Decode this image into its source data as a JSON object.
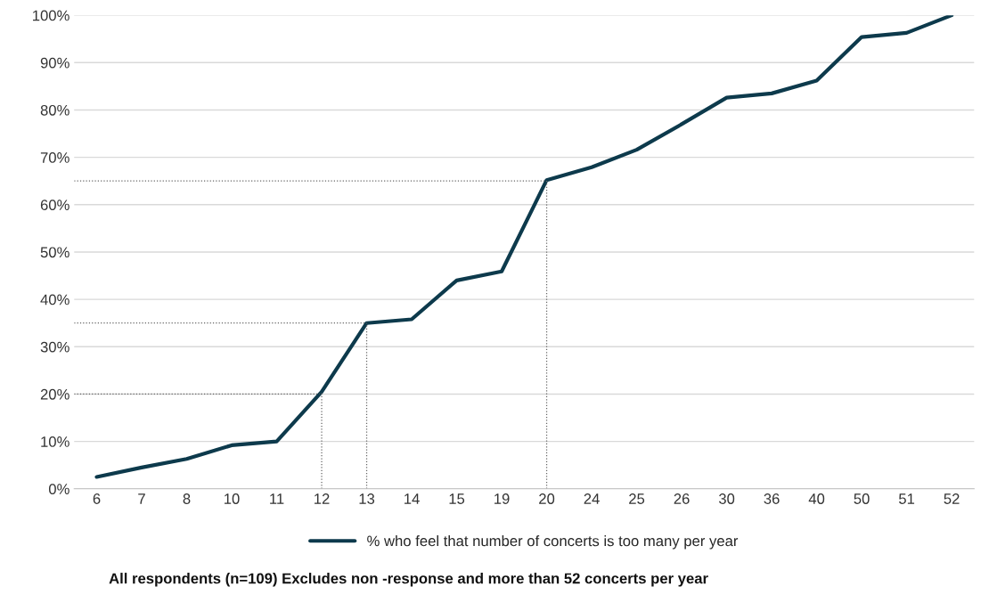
{
  "chart_data": {
    "type": "line",
    "categories": [
      "6",
      "7",
      "8",
      "10",
      "11",
      "12",
      "13",
      "14",
      "15",
      "19",
      "20",
      "24",
      "25",
      "26",
      "30",
      "36",
      "40",
      "50",
      "51",
      "52"
    ],
    "series": [
      {
        "name": "% who feel that number of concerts is too many per year",
        "color": "#0d3a4c",
        "values": [
          2.5,
          4.5,
          6.3,
          9.2,
          10,
          20.5,
          35,
          35.8,
          44,
          45.9,
          65.2,
          67.9,
          71.6,
          77,
          82.6,
          83.5,
          86.2,
          95.4,
          96.3,
          100
        ]
      }
    ],
    "ylim": [
      0,
      100
    ],
    "yticks": [
      {
        "value": 0,
        "label": "0%"
      },
      {
        "value": 10,
        "label": "10%"
      },
      {
        "value": 20,
        "label": "20%"
      },
      {
        "value": 30,
        "label": "30%"
      },
      {
        "value": 40,
        "label": "40%"
      },
      {
        "value": 50,
        "label": "50%"
      },
      {
        "value": 60,
        "label": "60%"
      },
      {
        "value": 70,
        "label": "70%"
      },
      {
        "value": 80,
        "label": "80%"
      },
      {
        "value": 90,
        "label": "90%"
      },
      {
        "value": 100,
        "label": "100%"
      }
    ],
    "grid": "y",
    "legend": "bottom",
    "marker": "none",
    "line_style": "solid",
    "ref_lines": [
      {
        "axis": "y",
        "value": 20,
        "color": "#666666",
        "line_style": "dotted"
      },
      {
        "axis": "y",
        "value": 35,
        "color": "#666666",
        "line_style": "dotted"
      },
      {
        "axis": "y",
        "value": 65,
        "color": "#666666",
        "line_style": "dotted"
      },
      {
        "axis": "x",
        "value": "12",
        "color": "#666666",
        "line_style": "dotted"
      },
      {
        "axis": "x",
        "value": "13",
        "color": "#666666",
        "line_style": "dotted"
      },
      {
        "axis": "x",
        "value": "20",
        "color": "#666666",
        "line_style": "dotted"
      }
    ],
    "annotations": [
      "All respondents (n=109) Excludes non -response and more than 52 concerts per year"
    ]
  }
}
